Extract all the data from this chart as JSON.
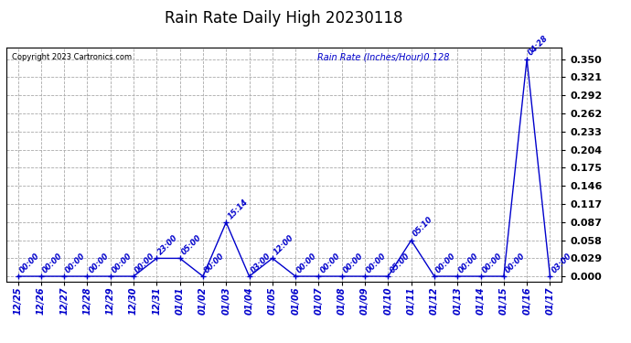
{
  "title": "Rain Rate Daily High 20230118",
  "copyright": "Copyright 2023 Cartronics.com",
  "legend_label": "Rain Rate (Inches/Hour)",
  "legend_value": "0.128",
  "line_color": "#0000cc",
  "bg_color": "#ffffff",
  "grid_color": "#aaaaaa",
  "x_dates": [
    "12/25",
    "12/26",
    "12/27",
    "12/28",
    "12/29",
    "12/30",
    "12/31",
    "01/01",
    "01/02",
    "01/03",
    "01/04",
    "01/05",
    "01/06",
    "01/07",
    "01/08",
    "01/09",
    "01/10",
    "01/11",
    "01/12",
    "01/13",
    "01/14",
    "01/15",
    "01/16",
    "01/17"
  ],
  "y_values": [
    0.0,
    0.0,
    0.0,
    0.0,
    0.0,
    0.0,
    0.029,
    0.029,
    0.0,
    0.087,
    0.0,
    0.029,
    0.0,
    0.0,
    0.0,
    0.0,
    0.0,
    0.058,
    0.0,
    0.0,
    0.0,
    0.0,
    0.35,
    0.0
  ],
  "time_labels": [
    "00:00",
    "00:00",
    "00:00",
    "00:00",
    "00:00",
    "00:00",
    "23:00",
    "05:00",
    "00:00",
    "15:14",
    "03:00",
    "12:00",
    "00:00",
    "00:00",
    "00:00",
    "00:00",
    "05:00",
    "05:10",
    "00:00",
    "00:00",
    "00:00",
    "00:00",
    "04:28",
    "03:00"
  ],
  "yticks": [
    0.0,
    0.029,
    0.058,
    0.087,
    0.117,
    0.146,
    0.175,
    0.204,
    0.233,
    0.262,
    0.292,
    0.321,
    0.35
  ],
  "ylim": [
    -0.008,
    0.368
  ],
  "title_fontsize": 12,
  "xlabel_fontsize": 7,
  "ylabel_fontsize": 8,
  "time_fontsize": 6,
  "copyright_fontsize": 6,
  "legend_fontsize": 7
}
